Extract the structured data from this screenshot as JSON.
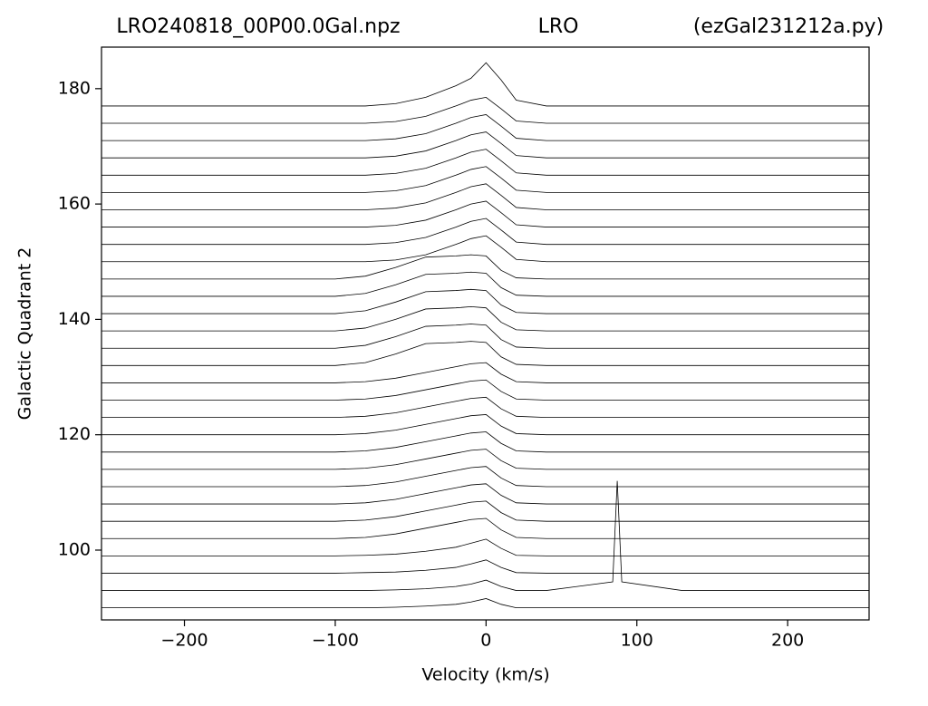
{
  "chart_data": {
    "type": "ridgeline",
    "title_parts": [
      "LRO240818_00P00.0Gal.npz",
      "LRO",
      "(ezGal231212a.py)"
    ],
    "xlabel": "Velocity (km/s)",
    "ylabel": "Galactic Quadrant 2",
    "xlim": [
      -255,
      254
    ],
    "ylim": [
      87.9,
      187.2
    ],
    "xticks": [
      {
        "value": -200,
        "label": "−200"
      },
      {
        "value": -100,
        "label": "−100"
      },
      0,
      100,
      200
    ],
    "yticks": [
      100,
      120,
      140,
      160,
      180
    ],
    "color": "#000000",
    "x": [
      -255,
      -125,
      -100,
      -80,
      -60,
      -40,
      -20,
      -10,
      0,
      10,
      20,
      40,
      84,
      87,
      90,
      130,
      254
    ],
    "series": [
      {
        "values": [
          90,
          90,
          90,
          90,
          90.1,
          90.3,
          90.6,
          91,
          91.6,
          90.6,
          90,
          90,
          90,
          90,
          90,
          90,
          90
        ]
      },
      {
        "values": [
          93,
          93,
          93,
          93,
          93.1,
          93.3,
          93.7,
          94.1,
          94.8,
          93.7,
          93,
          93,
          94.5,
          112,
          94.5,
          93,
          93
        ]
      },
      {
        "values": [
          96,
          96,
          96,
          96.1,
          96.2,
          96.5,
          97,
          97.6,
          98.3,
          97,
          96.1,
          96,
          96,
          96,
          96,
          96,
          96
        ]
      },
      {
        "values": [
          99,
          99,
          99,
          99.1,
          99.3,
          99.8,
          100.5,
          101.2,
          101.9,
          100.3,
          99.1,
          99,
          99,
          99,
          99,
          99,
          99
        ]
      },
      {
        "values": [
          102,
          102,
          102,
          102.2,
          102.8,
          103.8,
          104.8,
          105.3,
          105.5,
          103.5,
          102.2,
          102,
          102,
          102,
          102,
          102,
          102
        ]
      },
      {
        "values": [
          105,
          105,
          105,
          105.2,
          105.8,
          106.8,
          107.8,
          108.3,
          108.5,
          106.5,
          105.2,
          105,
          105,
          105,
          105,
          105,
          105
        ]
      },
      {
        "values": [
          108,
          108,
          108,
          108.2,
          108.8,
          109.8,
          110.8,
          111.3,
          111.5,
          109.5,
          108.2,
          108,
          108,
          108,
          108,
          108,
          108
        ]
      },
      {
        "values": [
          111,
          111,
          111,
          111.2,
          111.8,
          112.8,
          113.8,
          114.3,
          114.5,
          112.5,
          111.2,
          111,
          111,
          111,
          111,
          111,
          111
        ]
      },
      {
        "values": [
          114,
          114,
          114,
          114.2,
          114.8,
          115.8,
          116.8,
          117.3,
          117.5,
          115.5,
          114.2,
          114,
          114,
          114,
          114,
          114,
          114
        ]
      },
      {
        "values": [
          117,
          117,
          117,
          117.2,
          117.8,
          118.8,
          119.8,
          120.3,
          120.5,
          118.5,
          117.2,
          117,
          117,
          117,
          117,
          117,
          117
        ]
      },
      {
        "values": [
          120,
          120,
          120,
          120.2,
          120.8,
          121.8,
          122.8,
          123.3,
          123.5,
          121.5,
          120.2,
          120,
          120,
          120,
          120,
          120,
          120
        ]
      },
      {
        "values": [
          123,
          123,
          123,
          123.2,
          123.8,
          124.8,
          125.8,
          126.3,
          126.5,
          124.5,
          123.2,
          123,
          123,
          123,
          123,
          123,
          123
        ]
      },
      {
        "values": [
          126,
          126,
          126,
          126.2,
          126.8,
          127.8,
          128.8,
          129.3,
          129.5,
          127.5,
          126.2,
          126,
          126,
          126,
          126,
          126,
          126
        ]
      },
      {
        "values": [
          129,
          129,
          129,
          129.2,
          129.8,
          130.8,
          131.8,
          132.3,
          132.5,
          130.5,
          129.2,
          129,
          129,
          129,
          129,
          129,
          129
        ]
      },
      {
        "values": [
          132,
          132,
          132,
          132.5,
          134,
          135.8,
          136,
          136.2,
          136,
          133.5,
          132.2,
          132,
          132,
          132,
          132,
          132,
          132
        ]
      },
      {
        "values": [
          135,
          135,
          135,
          135.5,
          137,
          138.8,
          139,
          139.2,
          139,
          136.5,
          135.2,
          135,
          135,
          135,
          135,
          135,
          135
        ]
      },
      {
        "values": [
          138,
          138,
          138,
          138.5,
          140,
          141.8,
          142,
          142.2,
          142,
          139.5,
          138.2,
          138,
          138,
          138,
          138,
          138,
          138
        ]
      },
      {
        "values": [
          141,
          141,
          141,
          141.5,
          143,
          144.8,
          145,
          145.2,
          145,
          142.5,
          141.2,
          141,
          141,
          141,
          141,
          141,
          141
        ]
      },
      {
        "values": [
          144,
          144,
          144,
          144.5,
          146,
          147.8,
          148,
          148.2,
          148,
          145.5,
          144.2,
          144,
          144,
          144,
          144,
          144,
          144
        ]
      },
      {
        "values": [
          147,
          147,
          147,
          147.5,
          149,
          150.8,
          151,
          151.2,
          151,
          148.5,
          147.2,
          147,
          147,
          147,
          147,
          147,
          147
        ]
      },
      {
        "values": [
          150,
          150,
          150,
          150,
          150.3,
          151.2,
          153,
          154,
          154.5,
          152.5,
          150.4,
          150,
          150,
          150,
          150,
          150,
          150
        ]
      },
      {
        "values": [
          153,
          153,
          153,
          153,
          153.3,
          154.2,
          156,
          157,
          157.5,
          155.5,
          153.4,
          153,
          153,
          153,
          153,
          153,
          153
        ]
      },
      {
        "values": [
          156,
          156,
          156,
          156,
          156.3,
          157.2,
          159,
          160,
          160.5,
          158.5,
          156.4,
          156,
          156,
          156,
          156,
          156,
          156
        ]
      },
      {
        "values": [
          159,
          159,
          159,
          159,
          159.3,
          160.2,
          162,
          163,
          163.5,
          161.5,
          159.4,
          159,
          159,
          159,
          159,
          159,
          159
        ]
      },
      {
        "values": [
          162,
          162,
          162,
          162,
          162.3,
          163.2,
          165,
          166,
          166.5,
          164.5,
          162.4,
          162,
          162,
          162,
          162,
          162,
          162
        ]
      },
      {
        "values": [
          165,
          165,
          165,
          165,
          165.3,
          166.2,
          168,
          169,
          169.5,
          167.5,
          165.4,
          165,
          165,
          165,
          165,
          165,
          165
        ]
      },
      {
        "values": [
          168,
          168,
          168,
          168,
          168.3,
          169.2,
          171,
          172,
          172.5,
          170.5,
          168.4,
          168,
          168,
          168,
          168,
          168,
          168
        ]
      },
      {
        "values": [
          171,
          171,
          171,
          171,
          171.3,
          172.2,
          174,
          175,
          175.5,
          173.5,
          171.4,
          171,
          171,
          171,
          171,
          171,
          171
        ]
      },
      {
        "values": [
          174,
          174,
          174,
          174,
          174.3,
          175.2,
          177,
          178,
          178.5,
          176.5,
          174.4,
          174,
          174,
          174,
          174,
          174,
          174
        ]
      },
      {
        "values": [
          177,
          177,
          177,
          177,
          177.4,
          178.5,
          180.5,
          181.8,
          184.5,
          181.5,
          178,
          177,
          177,
          177,
          177,
          177,
          177
        ]
      }
    ]
  }
}
